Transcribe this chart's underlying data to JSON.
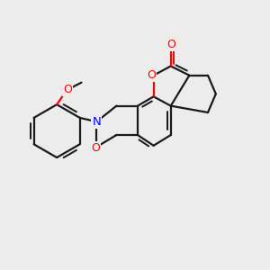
{
  "bg": "#ececec",
  "bc": "#1a1a1a",
  "Nc": "#0000ff",
  "Oc": "#ff0000",
  "lw": 1.6,
  "fs": 8.5,
  "figsize": [
    3.0,
    3.0
  ],
  "dpi": 100,
  "xlim": [
    0,
    10
  ],
  "ylim": [
    0,
    10
  ]
}
